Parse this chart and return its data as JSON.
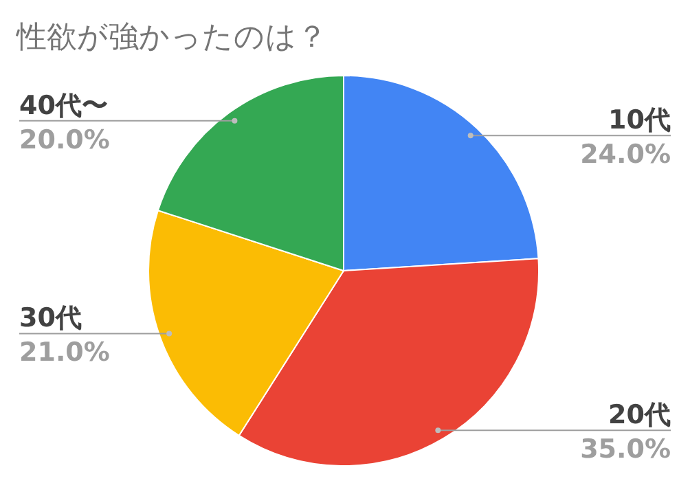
{
  "chart_data": {
    "type": "pie",
    "title": "性欲が強かったのは？",
    "categories": [
      "10代",
      "20代",
      "30代",
      "40代〜"
    ],
    "values": [
      24.0,
      35.0,
      21.0,
      20.0
    ],
    "colors": [
      "#4285f4",
      "#ea4335",
      "#fbbc04",
      "#34a853"
    ],
    "value_labels": [
      "24.0%",
      "35.0%",
      "21.0%",
      "20.0%"
    ]
  }
}
